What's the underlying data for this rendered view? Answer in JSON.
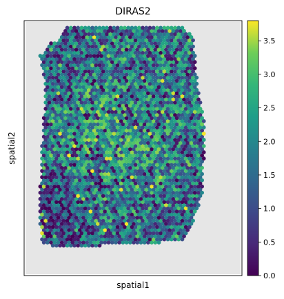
{
  "chart_data": {
    "type": "scatter",
    "title": "DIRAS2",
    "xlabel": "spatial1",
    "ylabel": "spatial2",
    "grid": false,
    "colormap": "viridis",
    "colorbar": {
      "range": [
        0.0,
        3.8
      ],
      "ticks": [
        0.0,
        0.5,
        1.0,
        1.5,
        2.0,
        2.5,
        3.0,
        3.5
      ],
      "tick_labels": [
        "0.0",
        "0.5",
        "1.0",
        "1.5",
        "2.0",
        "2.5",
        "3.0",
        "3.5"
      ]
    },
    "background_color": "#e6e6e6",
    "tissue_outline": [
      [
        0.2,
        0.98
      ],
      [
        0.73,
        0.98
      ],
      [
        0.78,
        0.93
      ],
      [
        0.79,
        0.81
      ],
      [
        0.8,
        0.74
      ],
      [
        0.83,
        0.58
      ],
      [
        0.82,
        0.33
      ],
      [
        0.78,
        0.22
      ],
      [
        0.74,
        0.14
      ],
      [
        0.65,
        0.14
      ],
      [
        0.61,
        0.12
      ],
      [
        0.36,
        0.12
      ],
      [
        0.34,
        0.11
      ],
      [
        0.26,
        0.11
      ],
      [
        0.08,
        0.12
      ],
      [
        0.07,
        0.26
      ],
      [
        0.08,
        0.48
      ],
      [
        0.09,
        0.62
      ],
      [
        0.1,
        0.74
      ],
      [
        0.07,
        0.86
      ],
      [
        0.12,
        0.91
      ],
      [
        0.17,
        0.93
      ]
    ],
    "regions": [
      {
        "center": [
          0.15,
          0.25
        ],
        "radius": 0.12,
        "mean": 0.6,
        "description": "low expression, lower left"
      },
      {
        "center": [
          0.18,
          0.82
        ],
        "radius": 0.1,
        "mean": 1.1,
        "description": "low expression, upper left"
      },
      {
        "center": [
          0.4,
          0.55
        ],
        "radius": 0.18,
        "mean": 2.4,
        "description": "high expression, center"
      },
      {
        "center": [
          0.55,
          0.4
        ],
        "radius": 0.15,
        "mean": 2.2,
        "description": "high expression, lower center"
      },
      {
        "center": [
          0.7,
          0.2
        ],
        "radius": 0.12,
        "mean": 1.5,
        "description": "medium expression, lower right"
      }
    ],
    "default_mean": 1.6,
    "value_range": [
      0.0,
      3.8
    ]
  }
}
